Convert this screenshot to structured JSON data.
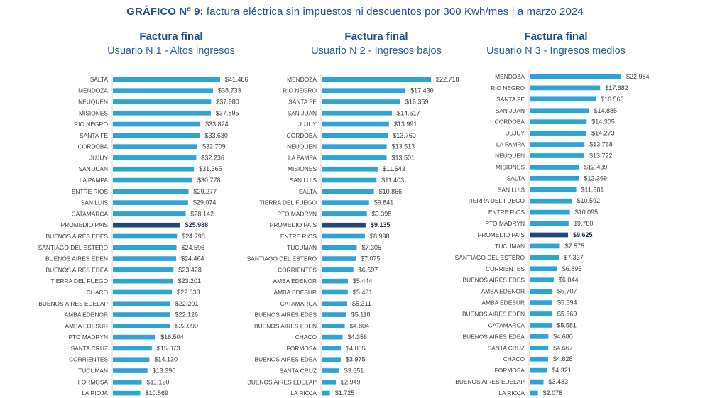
{
  "title": {
    "prefix": "GRÁFICO Nº 9:",
    "text": " factura eléctrica sin impuestos ni descuentos por 300 Kwh/mes | a marzo 2024"
  },
  "colors": {
    "bar": "#2ea3d6",
    "highlight": "#24467e",
    "axis": "#d9d9d9"
  },
  "chart_data": [
    {
      "type": "bar",
      "orientation": "horizontal",
      "title": "Factura final",
      "subtitle": "Usuario N 1 - Altos ingresos",
      "value_prefix": "$",
      "highlight": "PROMEDIO PAIS",
      "categories": [
        "SALTA",
        "MENDOZA",
        "NEUQUEN",
        "MISIONES",
        "RIO NEGRO",
        "SANTA FE",
        "CORDOBA",
        "JUJUY",
        "SAN JUAN",
        "LA PAMPA",
        "ENTRE RIOS",
        "SAN LUIS",
        "CATAMARCA",
        "PROMEDIO PAIS",
        "BUENOS AIRES EDES",
        "SANTIAGO DEL ESTERO",
        "BUENOS AIRES EDEN",
        "BUENOS AIRES EDEA",
        "TIERRA DEL FUEGO",
        "CHACO",
        "BUENOS AIRES EDELAP",
        "AMBA EDENOR",
        "AMBA EDESUR",
        "PTO MADRYN",
        "SANTA CRUZ",
        "CORRIENTES",
        "TUCUMAN",
        "FORMOSA",
        "LA RIOJA"
      ],
      "values": [
        41486,
        38733,
        37980,
        37895,
        33824,
        33630,
        32709,
        32236,
        31365,
        30778,
        29277,
        29074,
        28142,
        25988,
        24798,
        24596,
        24464,
        23428,
        23201,
        22833,
        22201,
        22126,
        22090,
        16504,
        15073,
        14130,
        13390,
        11120,
        10569
      ],
      "labels": [
        "$41.486",
        "$38.733",
        "$37.980",
        "$37.895",
        "$33.824",
        "$33.630",
        "$32.709",
        "$32.236",
        "$31.365",
        "$30.778",
        "$29.277",
        "$29.074",
        "$28.142",
        "$25.988",
        "$24.798",
        "$24.596",
        "$24.464",
        "$23.428",
        "$23.201",
        "$22.833",
        "$22.201",
        "$22.126",
        "$22.090",
        "$16.504",
        "$15.073",
        "$14.130",
        "$13.390",
        "$11.120",
        "$10.569"
      ],
      "xlim": [
        0,
        41486
      ],
      "grid": false
    },
    {
      "type": "bar",
      "orientation": "horizontal",
      "title": "Factura final",
      "subtitle": "Usuario N 2 - Ingresos bajos",
      "value_prefix": "$",
      "highlight": "PROMEDIO PAIS",
      "categories": [
        "MENDOZA",
        "RIO NEGRO",
        "SANTA FE",
        "SAN JUAN",
        "JUJUY",
        "CORDOBA",
        "NEUQUEN",
        "LA PAMPA",
        "MISIONES",
        "SAN LUIS",
        "SALTA",
        "TIERRA DEL FUEGO",
        "PTO MADRYN",
        "PROMEDIO PAIS",
        "ENTRE RIOS",
        "TUCUMAN",
        "SANTIAGO DEL ESTERO",
        "CORRIENTES",
        "AMBA EDENOR",
        "AMBA EDESUR",
        "CATAMARCA",
        "BUENOS AIRES EDES",
        "BUENOS AIRES EDEN",
        "CHACO",
        "FORMOSA",
        "BUENOS AIRES EDEA",
        "SANTA CRUZ",
        "BUENOS AIRES EDELAP",
        "LA RIOJA"
      ],
      "values": [
        22718,
        17430,
        16359,
        14617,
        13991,
        13760,
        13513,
        13501,
        11643,
        11403,
        10866,
        9841,
        9398,
        9135,
        8998,
        7305,
        7075,
        6597,
        5444,
        5431,
        5311,
        5118,
        4804,
        4356,
        4005,
        3975,
        3651,
        2949,
        1725
      ],
      "labels": [
        "$22.718",
        "$17.430",
        "$16.359",
        "$14.617",
        "$13.991",
        "$13.760",
        "$13.513",
        "$13.501",
        "$11.643",
        "$11.403",
        "$10.866",
        "$9.841",
        "$9.398",
        "$9.135",
        "$8.998",
        "$7.305",
        "$7.075",
        "$6.597",
        "$5.444",
        "$5.431",
        "$5.311",
        "$5.118",
        "$4.804",
        "$4.356",
        "$4.005",
        "$3.975",
        "$3.651",
        "$2.949",
        "$1.725"
      ],
      "xlim": [
        0,
        22718
      ],
      "grid": false
    },
    {
      "type": "bar",
      "orientation": "horizontal",
      "title": "Factura final",
      "subtitle": "Usuario N 3 - Ingresos medios",
      "value_prefix": "$",
      "highlight": "PROMEDIO PAIS",
      "categories": [
        "MENDOZA",
        "RIO NEGRO",
        "SANTA FE",
        "SAN JUAN",
        "CORDOBA",
        "JUJUY",
        "LA PAMPA",
        "NEUQUEN",
        "MISIONES",
        "SALTA",
        "SAN LUIS",
        "TIERRA DEL FUEGO",
        "ENTRE RIOS",
        "PTO MADRYN",
        "PROMEDIO PAIS",
        "TUCUMAN",
        "SANTIAGO DEL ESTERO",
        "CORRIENTES",
        "BUENOS AIRES EDES",
        "AMBA EDENOR",
        "AMBA EDESUR",
        "BUENOS AIRES EDEN",
        "CATAMARCA",
        "BUENOS AIRES EDEA",
        "SANTA CRUZ",
        "CHACO",
        "FORMOSA",
        "BUENOS AIRES EDELAP",
        "LA RIOJA"
      ],
      "values": [
        22984,
        17682,
        16563,
        14885,
        14305,
        14273,
        13768,
        13722,
        12439,
        12369,
        11681,
        10592,
        10095,
        9780,
        9625,
        7575,
        7337,
        6895,
        6044,
        5707,
        5694,
        5669,
        5581,
        4680,
        4667,
        4628,
        4321,
        3483,
        2078
      ],
      "labels": [
        "$22.984",
        "$17.682",
        "$16.563",
        "$14.885",
        "$14.305",
        "$14.273",
        "$13.768",
        "$13.722",
        "$12.439",
        "$12.369",
        "$11.681",
        "$10.592",
        "$10.095",
        "$9.780",
        "$9.625",
        "$7.575",
        "$7.337",
        "$6.895",
        "$6.044",
        "$5.707",
        "$5.694",
        "$5.669",
        "$5.581",
        "$4.680",
        "$4.667",
        "$4.628",
        "$4.321",
        "$3.483",
        "$2.078"
      ],
      "xlim": [
        0,
        22984
      ],
      "grid": false
    }
  ]
}
